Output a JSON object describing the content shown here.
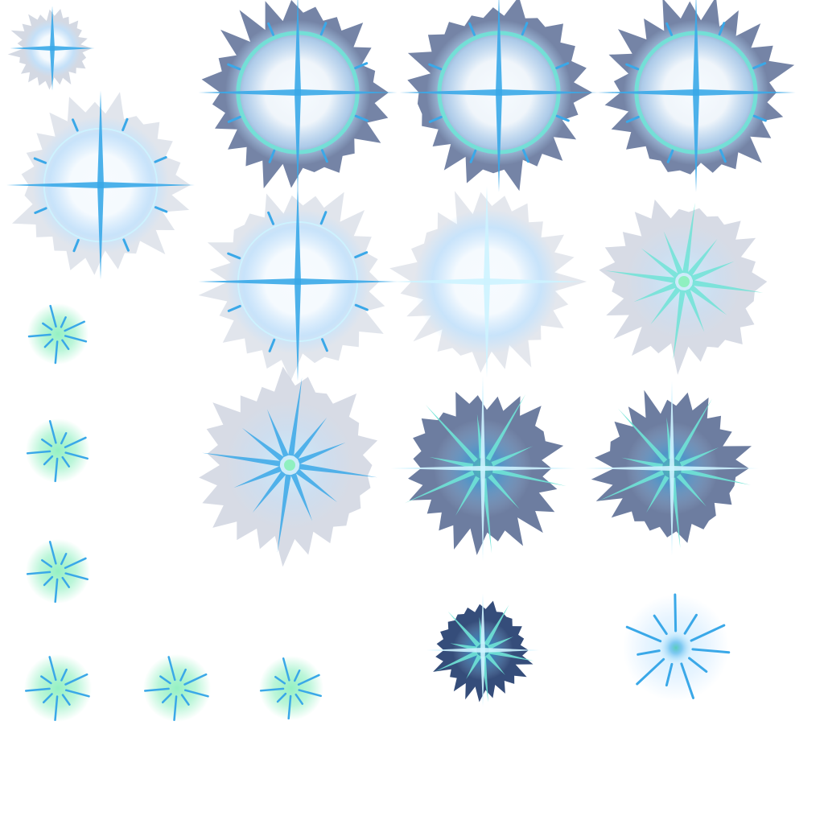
{
  "sprite_sheet": {
    "background": "#ffffff",
    "palette": {
      "core_white": "#f6fbff",
      "glow_blue": "#bfe2ff",
      "ring_cyan": "#6fe3d6",
      "ray_blue": "#3aa8e8",
      "ray_light": "#cdf3ff",
      "shard_grey": "#5d6f96",
      "shard_light": "#c9cfdc",
      "shard_dark": "#1f3a6b",
      "mint_glow": "#8ff0c0",
      "core_teal": "#4ec9b0"
    },
    "frames": [
      {
        "style": "small-burst"
      },
      {
        "style": "ring-burst"
      },
      {
        "style": "ring-burst"
      },
      {
        "style": "ring-burst"
      },
      {
        "style": "ring-burst"
      },
      {
        "style": "ring-burst"
      },
      {
        "style": "bright-burst"
      },
      {
        "style": "spiky-burst"
      },
      {
        "style": "pale-burst"
      },
      {
        "style": "dark-burst"
      },
      {
        "style": "dark-burst"
      },
      {
        "style": "small-dark-burst"
      },
      {
        "style": "faint-burst"
      },
      {
        "style": "mint-sparkle"
      },
      {
        "style": "mint-sparkle"
      },
      {
        "style": "mint-sparkle"
      },
      {
        "style": "mint-sparkle"
      },
      {
        "style": "mint-sparkle"
      },
      {
        "style": "mint-sparkle"
      }
    ]
  }
}
